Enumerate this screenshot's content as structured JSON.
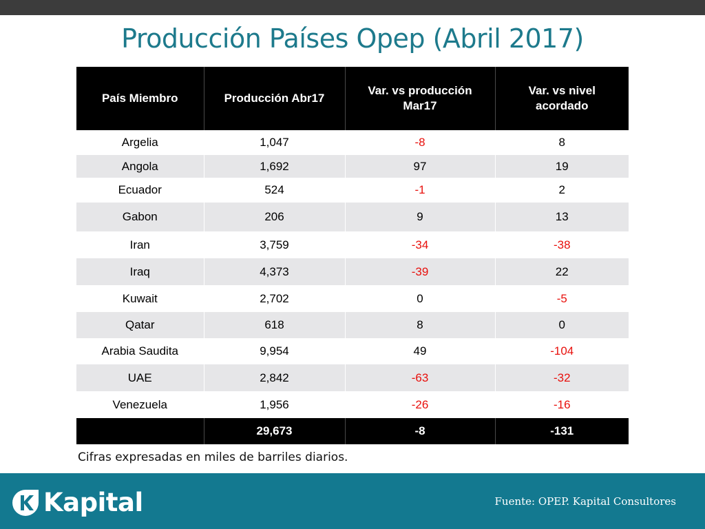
{
  "title": "Producción Países Opep (Abril 2017)",
  "table": {
    "headers": [
      "País Miembro",
      "Producción Abr17",
      "Var. vs producción Mar17",
      "Var. vs nivel acordado"
    ],
    "rows": [
      {
        "pais": "Argelia",
        "produccion": "1,047",
        "var_mar": "-8",
        "var_acordado": "8"
      },
      {
        "pais": "Angola",
        "produccion": "1,692",
        "var_mar": "97",
        "var_acordado": "19"
      },
      {
        "pais": "Ecuador",
        "produccion": "524",
        "var_mar": "-1",
        "var_acordado": "2"
      },
      {
        "pais": "Gabon",
        "produccion": "206",
        "var_mar": "9",
        "var_acordado": "13"
      },
      {
        "pais": "Iran",
        "produccion": "3,759",
        "var_mar": "-34",
        "var_acordado": "-38"
      },
      {
        "pais": "Iraq",
        "produccion": "4,373",
        "var_mar": "-39",
        "var_acordado": "22"
      },
      {
        "pais": "Kuwait",
        "produccion": "2,702",
        "var_mar": "0",
        "var_acordado": "-5"
      },
      {
        "pais": "Qatar",
        "produccion": "618",
        "var_mar": "8",
        "var_acordado": "0"
      },
      {
        "pais": "Arabia Saudita",
        "produccion": "9,954",
        "var_mar": "49",
        "var_acordado": "-104"
      },
      {
        "pais": "UAE",
        "produccion": "2,842",
        "var_mar": "-63",
        "var_acordado": "-32"
      },
      {
        "pais": "Venezuela",
        "produccion": "1,956",
        "var_mar": "-26",
        "var_acordado": "-16"
      }
    ],
    "total": {
      "pais": "",
      "produccion": "29,673",
      "var_mar": "-8",
      "var_acordado": "-131"
    }
  },
  "note": "Cifras expresadas en miles de barriles diarios.",
  "footer": {
    "logo_text": "Kapital",
    "logo_icon": "kapital-k-icon",
    "source": "Fuente: OPEP. Kapital Consultores"
  },
  "colors": {
    "title": "#1d7a8c",
    "footer_bg": "#137990",
    "top_bar": "#3c3c3c",
    "negative": "#e8100c",
    "header_bg": "#000000",
    "row_alt": "#e6e6e8"
  }
}
